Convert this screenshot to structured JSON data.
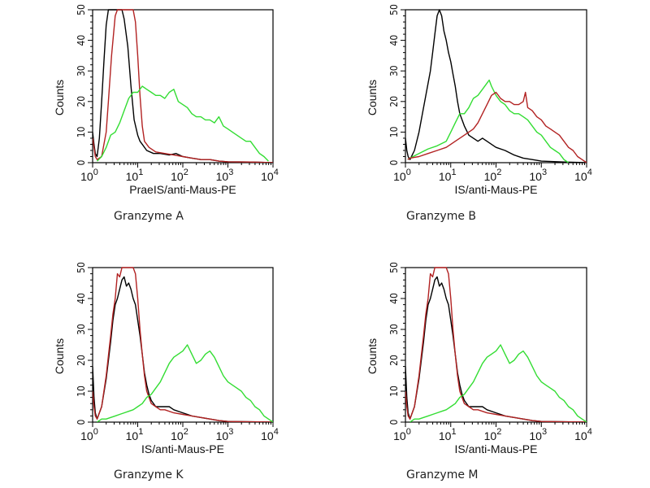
{
  "chart_data": [
    {
      "type": "line",
      "title": "Granzyme A",
      "caption": "Granzyme A",
      "xlabel": "PraeIS/anti-Maus-PE",
      "ylabel": "Counts",
      "xscale": "log",
      "xlim_log10": [
        0,
        4
      ],
      "ylim": [
        0,
        50
      ],
      "x_ticks": [
        {
          "base": "10",
          "exp": "0"
        },
        {
          "base": "10",
          "exp": "1"
        },
        {
          "base": "10",
          "exp": "2"
        },
        {
          "base": "10",
          "exp": "3"
        },
        {
          "base": "10",
          "exp": "4"
        }
      ],
      "y_ticks": [
        "0",
        "10",
        "20",
        "30",
        "40",
        "50"
      ],
      "series": [
        {
          "name": "black",
          "color": "#000000",
          "x": [
            0,
            0.03,
            0.06,
            0.1,
            0.15,
            0.2,
            0.25,
            0.3,
            0.35,
            0.4,
            0.5,
            0.6,
            0.65,
            0.7,
            0.78,
            0.85,
            0.92,
            1.0,
            1.05,
            1.1,
            1.2,
            1.35,
            1.5,
            1.7,
            1.85,
            2.0,
            2.2,
            2.4,
            2.6,
            2.8,
            3.0,
            3.5,
            4.0
          ],
          "y": [
            10,
            6,
            3,
            2,
            8,
            20,
            33,
            45,
            50,
            50,
            50,
            50,
            50,
            47,
            38,
            25,
            14,
            9,
            7,
            6,
            4,
            3,
            3,
            2.5,
            3,
            2,
            1.5,
            1,
            1,
            0.5,
            0.3,
            0.2,
            0
          ]
        },
        {
          "name": "red",
          "color": "#b22222",
          "x": [
            0,
            0.03,
            0.06,
            0.1,
            0.2,
            0.3,
            0.35,
            0.42,
            0.5,
            0.55,
            0.6,
            0.7,
            0.8,
            0.9,
            0.95,
            1.0,
            1.05,
            1.1,
            1.15,
            1.25,
            1.4,
            1.6,
            1.8,
            2.0,
            2.2,
            2.4,
            2.6,
            2.8,
            3.0,
            3.5,
            4.0
          ],
          "y": [
            8,
            5,
            2,
            1,
            2,
            10,
            20,
            35,
            48,
            50,
            50,
            50,
            50,
            50,
            46,
            35,
            22,
            12,
            7,
            5,
            3.5,
            3,
            2.5,
            2,
            1.5,
            1,
            1,
            0.5,
            0.3,
            0.2,
            0
          ]
        },
        {
          "name": "green",
          "color": "#33dd33",
          "x": [
            0.1,
            0.2,
            0.3,
            0.4,
            0.5,
            0.6,
            0.7,
            0.8,
            0.9,
            1.0,
            1.1,
            1.2,
            1.3,
            1.4,
            1.5,
            1.6,
            1.7,
            1.8,
            1.9,
            2.0,
            2.1,
            2.2,
            2.3,
            2.4,
            2.5,
            2.6,
            2.7,
            2.8,
            2.9,
            3.0,
            3.1,
            3.2,
            3.3,
            3.4,
            3.5,
            3.6,
            3.7,
            3.8,
            3.9
          ],
          "y": [
            0.5,
            2,
            5,
            9,
            10,
            13,
            17,
            21,
            23,
            23,
            25,
            24,
            23,
            22,
            22,
            21,
            23,
            24,
            20,
            19,
            18,
            16,
            15,
            15,
            14,
            14,
            13,
            15,
            12,
            11,
            10,
            9,
            8,
            7,
            7,
            5,
            3,
            2,
            0.5
          ]
        }
      ]
    },
    {
      "type": "line",
      "title": "Granzyme B",
      "caption": "Granzyme B",
      "xlabel": "IS/anti-Maus-PE",
      "ylabel": "Counts",
      "xscale": "log",
      "xlim_log10": [
        0,
        4
      ],
      "ylim": [
        0,
        50
      ],
      "x_ticks": [
        {
          "base": "10",
          "exp": "0"
        },
        {
          "base": "10",
          "exp": "1"
        },
        {
          "base": "10",
          "exp": "2"
        },
        {
          "base": "10",
          "exp": "3"
        },
        {
          "base": "10",
          "exp": "4"
        }
      ],
      "y_ticks": [
        "0",
        "10",
        "20",
        "30",
        "40",
        "50"
      ],
      "series": [
        {
          "name": "black",
          "color": "#000000",
          "x": [
            0,
            0.03,
            0.06,
            0.1,
            0.2,
            0.3,
            0.4,
            0.5,
            0.55,
            0.6,
            0.65,
            0.7,
            0.75,
            0.8,
            0.85,
            0.9,
            0.95,
            1.0,
            1.05,
            1.1,
            1.15,
            1.2,
            1.3,
            1.4,
            1.5,
            1.6,
            1.7,
            1.8,
            1.9,
            2.0,
            2.2,
            2.4,
            2.6,
            2.8,
            3.0,
            3.5,
            4.0
          ],
          "y": [
            8,
            4,
            2,
            1,
            4,
            10,
            18,
            26,
            30,
            36,
            42,
            48,
            50,
            48,
            43,
            40,
            36,
            33,
            29,
            25,
            20,
            16,
            12,
            9,
            8,
            7,
            8,
            7,
            6,
            5,
            4,
            2.5,
            1.5,
            1,
            0.5,
            0.2,
            0
          ]
        },
        {
          "name": "green",
          "color": "#33dd33",
          "x": [
            0.05,
            0.1,
            0.3,
            0.5,
            0.7,
            0.9,
            1.0,
            1.1,
            1.2,
            1.3,
            1.4,
            1.5,
            1.6,
            1.7,
            1.8,
            1.85,
            1.9,
            2.0,
            2.1,
            2.2,
            2.3,
            2.4,
            2.5,
            2.6,
            2.7,
            2.8,
            2.9,
            3.0,
            3.1,
            3.2,
            3.3,
            3.4,
            3.5,
            3.6
          ],
          "y": [
            1,
            1.5,
            3,
            4.5,
            5.5,
            7,
            10,
            13,
            16,
            16,
            18,
            21,
            22,
            24,
            26,
            27,
            25,
            22,
            20,
            19,
            17,
            16,
            16,
            15,
            14,
            12,
            10,
            9,
            7,
            5,
            4,
            3,
            1,
            0
          ]
        },
        {
          "name": "red",
          "color": "#b22222",
          "x": [
            0.05,
            0.1,
            0.3,
            0.5,
            0.7,
            0.9,
            1.0,
            1.1,
            1.2,
            1.3,
            1.4,
            1.5,
            1.6,
            1.7,
            1.8,
            1.9,
            2.0,
            2.1,
            2.2,
            2.3,
            2.4,
            2.5,
            2.6,
            2.65,
            2.7,
            2.8,
            2.9,
            3.0,
            3.1,
            3.2,
            3.3,
            3.4,
            3.5,
            3.6,
            3.7,
            3.8,
            3.9,
            4.0
          ],
          "y": [
            1,
            1.5,
            2,
            3,
            4,
            5,
            6,
            7,
            8,
            9,
            10,
            11,
            13,
            16,
            19,
            22,
            23,
            21,
            20,
            20,
            19,
            19,
            20,
            23,
            18,
            17,
            15,
            14,
            12,
            11,
            10,
            9,
            7,
            5,
            4,
            2,
            1,
            0
          ]
        }
      ]
    },
    {
      "type": "line",
      "title": "Granzyme K",
      "caption": "Granzyme K",
      "xlabel": "IS/anti-Maus-PE",
      "ylabel": "Counts",
      "xscale": "log",
      "xlim_log10": [
        0,
        4
      ],
      "ylim": [
        0,
        50
      ],
      "x_ticks": [
        {
          "base": "10",
          "exp": "0"
        },
        {
          "base": "10",
          "exp": "1"
        },
        {
          "base": "10",
          "exp": "2"
        },
        {
          "base": "10",
          "exp": "3"
        },
        {
          "base": "10",
          "exp": "4"
        }
      ],
      "y_ticks": [
        "0",
        "10",
        "20",
        "30",
        "40",
        "50"
      ],
      "series": [
        {
          "name": "black",
          "color": "#000000",
          "x": [
            0,
            0.03,
            0.06,
            0.1,
            0.2,
            0.3,
            0.4,
            0.45,
            0.5,
            0.55,
            0.6,
            0.65,
            0.7,
            0.75,
            0.8,
            0.85,
            0.9,
            0.95,
            1.0,
            1.05,
            1.1,
            1.15,
            1.2,
            1.25,
            1.3,
            1.4,
            1.5,
            1.6,
            1.7,
            1.8,
            2.0,
            2.2,
            2.4,
            2.6,
            2.8,
            3.0,
            4.0
          ],
          "y": [
            18,
            8,
            3,
            1,
            5,
            14,
            26,
            33,
            38,
            40,
            43,
            46,
            47,
            44,
            45,
            43,
            40,
            38,
            33,
            28,
            22,
            16,
            12,
            9,
            7,
            5,
            5,
            5,
            5,
            4,
            3,
            2,
            1.5,
            1,
            0.5,
            0.2,
            0
          ]
        },
        {
          "name": "red",
          "color": "#b22222",
          "x": [
            0,
            0.03,
            0.06,
            0.1,
            0.2,
            0.3,
            0.4,
            0.45,
            0.5,
            0.55,
            0.6,
            0.65,
            0.7,
            0.8,
            0.9,
            0.95,
            1.0,
            1.05,
            1.1,
            1.15,
            1.2,
            1.25,
            1.3,
            1.4,
            1.5,
            1.6,
            1.8,
            2.0,
            2.2,
            2.4,
            2.6,
            2.8,
            3.0,
            4.0
          ],
          "y": [
            10,
            5,
            2,
            1,
            5,
            15,
            28,
            35,
            40,
            48,
            47,
            50,
            50,
            50,
            50,
            48,
            40,
            30,
            22,
            15,
            10,
            8,
            6,
            5,
            4,
            4,
            3,
            2.5,
            2,
            1.5,
            1,
            0.5,
            0.2,
            0
          ]
        },
        {
          "name": "green",
          "color": "#33dd33",
          "x": [
            0.1,
            0.2,
            0.3,
            0.4,
            0.5,
            0.6,
            0.7,
            0.8,
            0.9,
            1.0,
            1.1,
            1.2,
            1.3,
            1.4,
            1.5,
            1.6,
            1.7,
            1.8,
            1.9,
            2.0,
            2.1,
            2.2,
            2.3,
            2.4,
            2.5,
            2.6,
            2.7,
            2.8,
            2.9,
            3.0,
            3.1,
            3.2,
            3.3,
            3.4,
            3.5,
            3.6,
            3.7,
            3.8,
            3.9,
            4.0
          ],
          "y": [
            0,
            1,
            1,
            1.5,
            2,
            2.5,
            3,
            3.5,
            4,
            5,
            6,
            8,
            9,
            11,
            13,
            16,
            19,
            21,
            22,
            23,
            25,
            22,
            19,
            20,
            22,
            23,
            21,
            18,
            15,
            13,
            12,
            11,
            10,
            8,
            7,
            5,
            4,
            2,
            1,
            0
          ]
        }
      ]
    },
    {
      "type": "line",
      "title": "Granzyme M",
      "caption": "Granzyme M",
      "xlabel": "IS/anti-Maus-PE",
      "ylabel": "Counts",
      "xscale": "log",
      "xlim_log10": [
        0,
        4
      ],
      "ylim": [
        0,
        50
      ],
      "x_ticks": [
        {
          "base": "10",
          "exp": "0"
        },
        {
          "base": "10",
          "exp": "1"
        },
        {
          "base": "10",
          "exp": "2"
        },
        {
          "base": "10",
          "exp": "3"
        },
        {
          "base": "10",
          "exp": "4"
        }
      ],
      "y_ticks": [
        "0",
        "10",
        "20",
        "30",
        "40",
        "50"
      ],
      "series": [
        {
          "name": "black",
          "color": "#000000",
          "x": [
            0,
            0.03,
            0.06,
            0.1,
            0.2,
            0.3,
            0.4,
            0.45,
            0.5,
            0.55,
            0.6,
            0.65,
            0.7,
            0.75,
            0.8,
            0.85,
            0.9,
            0.95,
            1.0,
            1.05,
            1.1,
            1.15,
            1.2,
            1.25,
            1.3,
            1.4,
            1.5,
            1.6,
            1.7,
            1.8,
            2.0,
            2.2,
            2.4,
            2.6,
            2.8,
            3.0,
            4.0
          ],
          "y": [
            18,
            8,
            3,
            1,
            5,
            14,
            26,
            33,
            38,
            40,
            43,
            46,
            47,
            44,
            45,
            43,
            40,
            38,
            33,
            28,
            22,
            16,
            12,
            9,
            7,
            5,
            5,
            5,
            5,
            4,
            3,
            2,
            1.5,
            1,
            0.5,
            0.2,
            0
          ]
        },
        {
          "name": "red",
          "color": "#b22222",
          "x": [
            0,
            0.03,
            0.06,
            0.1,
            0.2,
            0.3,
            0.4,
            0.45,
            0.5,
            0.55,
            0.6,
            0.65,
            0.7,
            0.8,
            0.9,
            0.95,
            1.0,
            1.05,
            1.1,
            1.15,
            1.2,
            1.25,
            1.3,
            1.4,
            1.5,
            1.6,
            1.8,
            2.0,
            2.2,
            2.4,
            2.6,
            2.8,
            3.0,
            4.0
          ],
          "y": [
            10,
            5,
            2,
            1,
            5,
            15,
            28,
            35,
            40,
            48,
            47,
            50,
            50,
            50,
            50,
            48,
            40,
            30,
            22,
            15,
            10,
            8,
            6,
            5,
            4,
            4,
            3,
            2.5,
            2,
            1.5,
            1,
            0.5,
            0.2,
            0
          ]
        },
        {
          "name": "green",
          "color": "#33dd33",
          "x": [
            0.1,
            0.2,
            0.3,
            0.4,
            0.5,
            0.6,
            0.7,
            0.8,
            0.9,
            1.0,
            1.1,
            1.2,
            1.3,
            1.4,
            1.5,
            1.6,
            1.7,
            1.8,
            1.9,
            2.0,
            2.1,
            2.2,
            2.3,
            2.4,
            2.5,
            2.6,
            2.7,
            2.8,
            2.9,
            3.0,
            3.1,
            3.2,
            3.3,
            3.4,
            3.5,
            3.6,
            3.7,
            3.8,
            3.9,
            4.0
          ],
          "y": [
            0,
            1,
            1,
            1.5,
            2,
            2.5,
            3,
            3.5,
            4,
            5,
            6,
            8,
            9,
            11,
            13,
            16,
            19,
            21,
            22,
            23,
            25,
            22,
            19,
            20,
            22,
            23,
            21,
            18,
            15,
            13,
            12,
            11,
            10,
            8,
            7,
            5,
            4,
            2,
            1,
            0
          ]
        }
      ]
    }
  ]
}
